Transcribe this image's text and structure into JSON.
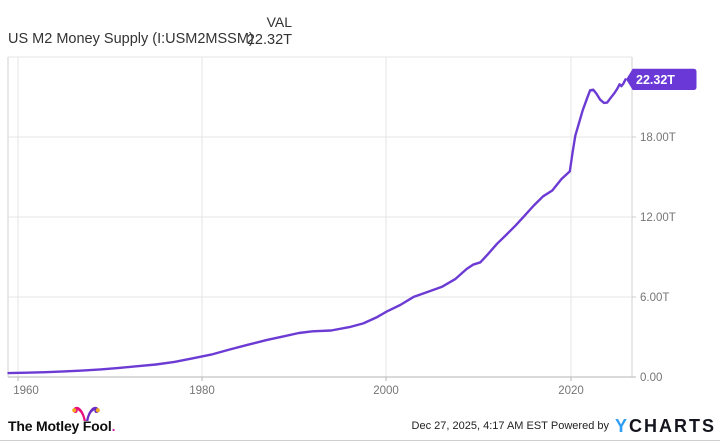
{
  "header": {
    "title": "US M2 Money Supply (I:USM2MSSM)",
    "val_label": "VAL",
    "val_value": "22.32T"
  },
  "chart_data": {
    "type": "line",
    "title": "US M2 Money Supply (I:USM2MSSM)",
    "series_name": "US M2 Money Supply",
    "unit": "USD, trillions",
    "line_color": "#6c3bd4",
    "badge_color": "#6a38d6",
    "grid_color": "#e4e4e4",
    "axis_color": "#b5b5b5",
    "grid": true,
    "legend_position": "none",
    "last_value_label": "22.32T",
    "x_domain": [
      1958.95,
      2026.65
    ],
    "y_domain": [
      0,
      24
    ],
    "x_tick_labels": [
      "1960",
      "1980",
      "2000",
      "2020"
    ],
    "y_tick_labels": [
      "0.00",
      "6.00T",
      "12.00T",
      "18.00T"
    ],
    "points": [
      [
        1959,
        0.29
      ],
      [
        1961,
        0.32
      ],
      [
        1963,
        0.36
      ],
      [
        1965,
        0.42
      ],
      [
        1967,
        0.48
      ],
      [
        1969,
        0.57
      ],
      [
        1971,
        0.68
      ],
      [
        1973,
        0.81
      ],
      [
        1975,
        0.94
      ],
      [
        1977,
        1.13
      ],
      [
        1979,
        1.4
      ],
      [
        1981,
        1.68
      ],
      [
        1983,
        2.06
      ],
      [
        1985,
        2.42
      ],
      [
        1987,
        2.77
      ],
      [
        1989,
        3.07
      ],
      [
        1990.5,
        3.3
      ],
      [
        1992,
        3.43
      ],
      [
        1994,
        3.49
      ],
      [
        1996,
        3.74
      ],
      [
        1997.5,
        4.02
      ],
      [
        1999,
        4.49
      ],
      [
        2000,
        4.9
      ],
      [
        2001.5,
        5.4
      ],
      [
        2003,
        6.02
      ],
      [
        2004.5,
        6.38
      ],
      [
        2006,
        6.76
      ],
      [
        2007.5,
        7.36
      ],
      [
        2008.7,
        8.1
      ],
      [
        2009.4,
        8.42
      ],
      [
        2010.2,
        8.6
      ],
      [
        2011,
        9.2
      ],
      [
        2012,
        9.99
      ],
      [
        2013,
        10.66
      ],
      [
        2014,
        11.35
      ],
      [
        2015,
        12.1
      ],
      [
        2016,
        12.86
      ],
      [
        2017,
        13.55
      ],
      [
        2018,
        13.99
      ],
      [
        2019,
        14.85
      ],
      [
        2019.9,
        15.42
      ],
      [
        2020.2,
        16.8
      ],
      [
        2020.5,
        18.1
      ],
      [
        2020.9,
        19.05
      ],
      [
        2021.3,
        20.0
      ],
      [
        2021.8,
        20.95
      ],
      [
        2022.1,
        21.5
      ],
      [
        2022.45,
        21.55
      ],
      [
        2022.8,
        21.25
      ],
      [
        2023.2,
        20.8
      ],
      [
        2023.6,
        20.56
      ],
      [
        2023.95,
        20.58
      ],
      [
        2024.35,
        20.95
      ],
      [
        2024.75,
        21.3
      ],
      [
        2025.05,
        21.62
      ],
      [
        2025.3,
        21.95
      ],
      [
        2025.5,
        21.82
      ],
      [
        2025.7,
        21.98
      ],
      [
        2025.95,
        22.32
      ]
    ]
  },
  "footer": {
    "mf_text": "The Motley Fool",
    "mf_period": ".",
    "timestamp": "Dec 27, 2025, 4:17 AM EST",
    "powered_by": "Powered by",
    "ycharts_y": "Y",
    "ycharts_charts": "CHARTS"
  },
  "colors": {
    "accent_purple": "#6c3bd4",
    "ycharts_blue": "#2d9cf4",
    "motley_pink": "#e6117c",
    "motley_purple": "#6a2dc4",
    "motley_gold": "#f5a91d",
    "tick_label": "#767676",
    "title_text": "#333333"
  }
}
